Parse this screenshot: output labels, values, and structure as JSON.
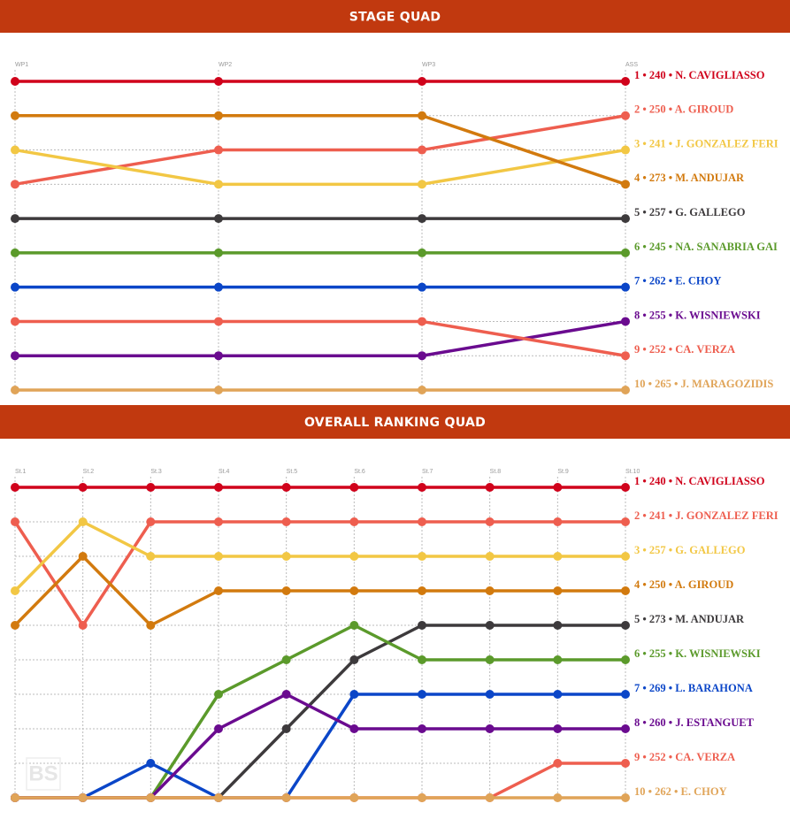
{
  "chart_data": [
    {
      "type": "bump",
      "title": "STAGE QUAD",
      "categories": [
        "WP1",
        "WP2",
        "WP3",
        "ASS"
      ],
      "ylim": [
        1,
        10
      ],
      "yticks": [
        1,
        2,
        3,
        4,
        5,
        6,
        7,
        8,
        9,
        10
      ],
      "grid": true,
      "series": [
        {
          "name": "1 • 240 • N. CAVIGLIASSO",
          "color": "#d0021b",
          "values": [
            1,
            1,
            1,
            1
          ]
        },
        {
          "name": "2 • 250 • A. GIROUD",
          "color": "#ee5e4f",
          "values": [
            4,
            3,
            3,
            2
          ]
        },
        {
          "name": "3 • 241 • J. GONZALEZ FERI",
          "color": "#f2c744",
          "values": [
            3,
            4,
            4,
            3
          ]
        },
        {
          "name": "4 • 273 • M. ANDUJAR",
          "color": "#d27a0e",
          "values": [
            2,
            2,
            2,
            4
          ]
        },
        {
          "name": "5 • 257 • G. GALLEGO",
          "color": "#3d3a3c",
          "values": [
            5,
            5,
            5,
            5
          ]
        },
        {
          "name": "6 • 245 • NA. SANABRIA GAI",
          "color": "#5b9a2b",
          "values": [
            6,
            6,
            6,
            6
          ]
        },
        {
          "name": "7 • 262 • E. CHOY",
          "color": "#0b46c8",
          "values": [
            7,
            7,
            7,
            7
          ]
        },
        {
          "name": "8 • 255 • K. WISNIEWSKI",
          "color": "#6a0b8f",
          "values": [
            9,
            9,
            9,
            8
          ]
        },
        {
          "name": "9 • 252 • CA. VERZA",
          "color": "#ee5e4f",
          "values": [
            8,
            8,
            8,
            9
          ]
        },
        {
          "name": "10 • 265 • J. MARAGOZIDIS",
          "color": "#e0a458",
          "values": [
            10,
            10,
            10,
            10
          ]
        }
      ]
    },
    {
      "type": "bump",
      "title": "OVERALL RANKING QUAD",
      "watermark": "BS",
      "categories": [
        "St.1",
        "St.2",
        "St.3",
        "St.4",
        "St.5",
        "St.6",
        "St.7",
        "St.8",
        "St.9",
        "St.10"
      ],
      "ylim": [
        1,
        10
      ],
      "yticks": [
        1,
        2,
        3,
        4,
        5,
        6,
        7,
        8,
        9,
        10
      ],
      "grid": true,
      "series": [
        {
          "name": "1 • 240 • N. CAVIGLIASSO",
          "color": "#d0021b",
          "values": [
            1,
            1,
            1,
            1,
            1,
            1,
            1,
            1,
            1,
            1
          ]
        },
        {
          "name": "2 • 241 • J. GONZALEZ FERI",
          "color": "#ee5e4f",
          "values": [
            2,
            5,
            2,
            2,
            2,
            2,
            2,
            2,
            2,
            2
          ]
        },
        {
          "name": "3 • 257 • G. GALLEGO",
          "color": "#f2c744",
          "values": [
            4,
            2,
            3,
            3,
            3,
            3,
            3,
            3,
            3,
            3
          ]
        },
        {
          "name": "4 • 250 • A. GIROUD",
          "color": "#d27a0e",
          "values": [
            5,
            3,
            5,
            4,
            4,
            4,
            4,
            4,
            4,
            4
          ]
        },
        {
          "name": "5 • 273 • M. ANDUJAR",
          "color": "#3d3a3c",
          "values": [
            10,
            10,
            10,
            10,
            8,
            6,
            5,
            5,
            5,
            5
          ]
        },
        {
          "name": "6 • 255 • K. WISNIEWSKI",
          "color": "#5b9a2b",
          "values": [
            10,
            10,
            10,
            7,
            6,
            5,
            6,
            6,
            6,
            6
          ]
        },
        {
          "name": "7 • 269 • L. BARAHONA",
          "color": "#0b46c8",
          "values": [
            10,
            10,
            9,
            10,
            10,
            7,
            7,
            7,
            7,
            7
          ]
        },
        {
          "name": "8 • 260 • J. ESTANGUET",
          "color": "#6a0b8f",
          "values": [
            10,
            10,
            10,
            8,
            7,
            8,
            8,
            8,
            8,
            8
          ]
        },
        {
          "name": "9 • 252 • CA. VERZA",
          "color": "#ee5e4f",
          "values": [
            10,
            10,
            10,
            10,
            10,
            10,
            10,
            10,
            9,
            9
          ]
        },
        {
          "name": "10 • 262 • E. CHOY",
          "color": "#e0a458",
          "values": [
            10,
            10,
            10,
            10,
            10,
            10,
            10,
            10,
            10,
            10
          ]
        }
      ]
    }
  ]
}
